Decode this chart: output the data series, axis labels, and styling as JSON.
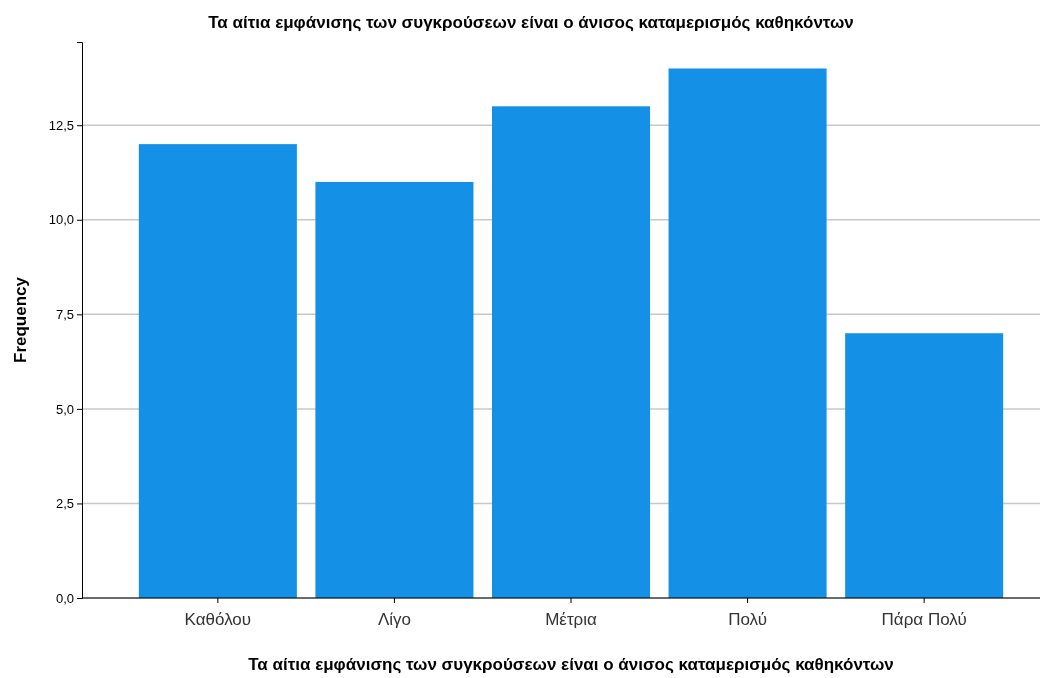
{
  "chart_data": {
    "type": "bar",
    "title": "Τα αίτια εμφάνισης των συγκρούσεων είναι ο άνισος καταμερισμός καθηκόντων",
    "xlabel": "Τα αίτια εμφάνισης των συγκρούσεων είναι ο άνισος καταμερισμός καθηκόντων",
    "ylabel": "Frequency",
    "categories": [
      "Καθόλου",
      "Λίγο",
      "Μέτρια",
      "Πολύ",
      "Πάρα Πολύ"
    ],
    "values": [
      12,
      11,
      13,
      14,
      7
    ],
    "color": "#1490e6",
    "ylim": [
      0,
      14.7
    ],
    "yticks": [
      {
        "value": 0,
        "label": "0,0"
      },
      {
        "value": 2.5,
        "label": "2,5"
      },
      {
        "value": 5,
        "label": "5,0"
      },
      {
        "value": 7.5,
        "label": "7,5"
      },
      {
        "value": 10,
        "label": "10,0"
      },
      {
        "value": 12.5,
        "label": "12,5"
      }
    ],
    "grid": "y"
  }
}
